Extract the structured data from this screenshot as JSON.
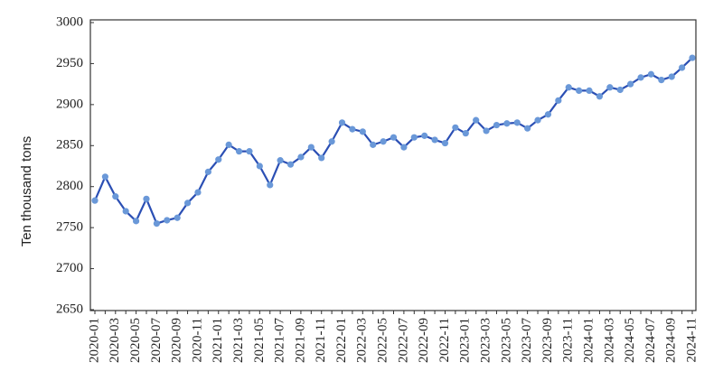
{
  "chart_data": {
    "type": "line",
    "ylabel": "Ten thousand tons",
    "categories": [
      "2020-01",
      null,
      "2020-03",
      null,
      "2020-05",
      null,
      "2020-07",
      null,
      "2020-09",
      null,
      "2020-11",
      null,
      "2021-01",
      null,
      "2021-03",
      null,
      "2021-05",
      null,
      "2021-07",
      null,
      "2021-09",
      null,
      "2021-11",
      null,
      "2022-01",
      null,
      "2022-03",
      null,
      "2022-05",
      null,
      "2022-07",
      null,
      "2022-09",
      null,
      "2022-11",
      null,
      "2023-01",
      null,
      "2023-03",
      null,
      "2023-05",
      null,
      "2023-07",
      null,
      "2023-09",
      null,
      "2023-11",
      null,
      "2024-01",
      null,
      "2024-03",
      null,
      "2024-05",
      null,
      "2024-07",
      null,
      "2024-09",
      null,
      "2024-11"
    ],
    "series": [
      {
        "color": "#2b4fb4",
        "marker_color": "#6a98d8",
        "values": [
          2783,
          2812,
          2788,
          2770,
          2758,
          2785,
          2755,
          2759,
          2762,
          2780,
          2793,
          2818,
          2833,
          2851,
          2843,
          2843,
          2825,
          2802,
          2832,
          2827,
          2836,
          2848,
          2835,
          2855,
          2878,
          2870,
          2867,
          2851,
          2855,
          2860,
          2848,
          2860,
          2862,
          2857,
          2853,
          2872,
          2865,
          2881,
          2868,
          2875,
          2877,
          2878,
          2871,
          2881,
          2888,
          2905,
          2921,
          2917,
          2917,
          2910,
          2921,
          2918,
          2925,
          2933,
          2937,
          2930,
          2934,
          2945,
          2957
        ]
      }
    ],
    "ylim": [
      2650,
      3000
    ],
    "yticks": [
      2650,
      2700,
      2750,
      2800,
      2850,
      2900,
      2950,
      3000
    ]
  }
}
